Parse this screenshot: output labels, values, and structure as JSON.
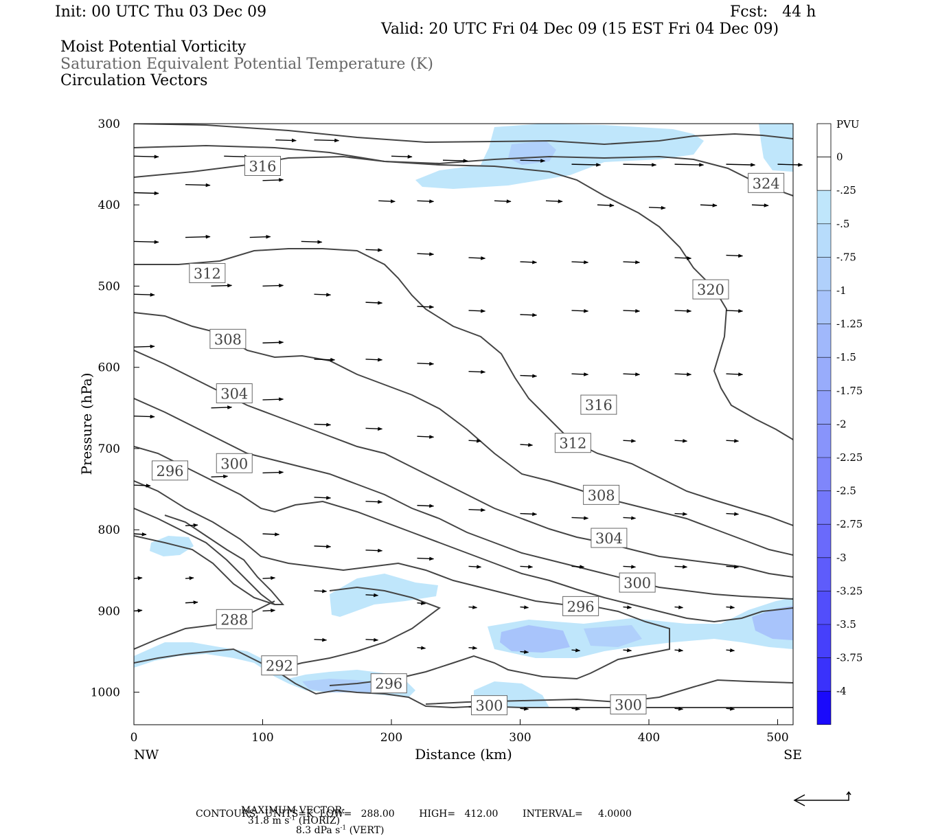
{
  "header": {
    "init": "Init: 00 UTC Thu 03 Dec 09",
    "fcst": "Fcst:   44 h",
    "valid": "Valid: 20 UTC Fri 04 Dec 09 (15 EST Fri 04 Dec 09)",
    "field1": "Moist Potential Vorticity",
    "field2": "Saturation Equivalent Potential Temperature (K)",
    "field3": "Circulation Vectors"
  },
  "footer": {
    "maxvec_label": "MAXIMUM VECTOR:",
    "maxvec_horiz": "31.8 m s",
    "maxvec_horiz_unit": "(HORIZ)",
    "maxvec_vert": "8.3 dPa s",
    "maxvec_vert_unit": "(VERT)",
    "exp": "-1",
    "contours": "CONTOURS:  UNITS=K  LOW=   288.00        HIGH=   412.00        INTERVAL=     4.0000"
  },
  "chart_data": {
    "type": "cross-section",
    "xlabel": "Distance (km)",
    "ylabel": "Pressure (hPa)",
    "x_range": [
      0,
      512
    ],
    "y_range": [
      1040,
      300
    ],
    "x_ticks": [
      0,
      100,
      200,
      300,
      400,
      500
    ],
    "y_ticks": [
      300,
      400,
      500,
      600,
      700,
      800,
      900,
      1000
    ],
    "x_end_labels": {
      "left": "NW",
      "right": "SE"
    },
    "colorbar": {
      "unit": "PVU",
      "levels": [
        "0",
        "-.25",
        "-.5",
        "-.75",
        "-1",
        "-1.25",
        "-1.5",
        "-1.75",
        "-2",
        "-2.25",
        "-2.5",
        "-2.75",
        "-3",
        "-3.25",
        "-3.5",
        "-3.75",
        "-4"
      ],
      "colors": [
        "#ffffff",
        "#ffffff",
        "#bfe6fb",
        "#b7dcfb",
        "#b0d0fb",
        "#a8c4fb",
        "#a0b8fb",
        "#98acfb",
        "#90a0fb",
        "#8894fb",
        "#7f86fb",
        "#7478fb",
        "#6a6afb",
        "#5e5cfb",
        "#524efb",
        "#4640fb",
        "#3a32fb",
        "#1a0afb"
      ]
    },
    "contour_labels": [
      {
        "value": "316",
        "x": 100,
        "p": 352
      },
      {
        "value": "324",
        "x": 491,
        "p": 373
      },
      {
        "value": "312",
        "x": 57,
        "p": 484
      },
      {
        "value": "320",
        "x": 448,
        "p": 504
      },
      {
        "value": "308",
        "x": 73,
        "p": 565
      },
      {
        "value": "304",
        "x": 78,
        "p": 632
      },
      {
        "value": "316",
        "x": 361,
        "p": 646
      },
      {
        "value": "312",
        "x": 341,
        "p": 693
      },
      {
        "value": "296",
        "x": 28,
        "p": 727
      },
      {
        "value": "300",
        "x": 78,
        "p": 718
      },
      {
        "value": "308",
        "x": 363,
        "p": 757
      },
      {
        "value": "304",
        "x": 369,
        "p": 810
      },
      {
        "value": "300",
        "x": 391,
        "p": 865
      },
      {
        "value": "296",
        "x": 347,
        "p": 894
      },
      {
        "value": "288",
        "x": 78,
        "p": 910
      },
      {
        "value": "292",
        "x": 113,
        "p": 967
      },
      {
        "value": "296",
        "x": 198,
        "p": 989
      },
      {
        "value": "300",
        "x": 276,
        "p": 1016
      },
      {
        "value": "300",
        "x": 384,
        "p": 1015
      }
    ],
    "max_vector": {
      "horiz_m_s": 31.8,
      "vert_dPa_s": 8.3
    },
    "contours": {
      "units": "K",
      "low": 288.0,
      "high": 412.0,
      "interval": 4.0
    }
  }
}
